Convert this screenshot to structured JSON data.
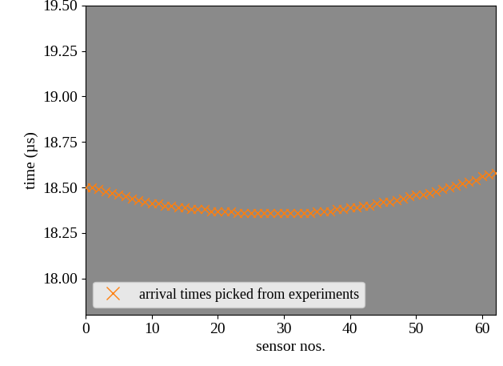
{
  "chart_data": {
    "type": "scatter",
    "xlabel": "sensor nos.",
    "ylabel": "time (µs)",
    "series": [
      {
        "name": "arrival times picked from experiments",
        "color": "#ff7f0e",
        "marker": "x",
        "x": [
          0,
          1,
          2,
          3,
          4,
          5,
          6,
          7,
          8,
          9,
          10,
          11,
          12,
          13,
          14,
          15,
          16,
          17,
          18,
          19,
          20,
          21,
          22,
          23,
          24,
          25,
          26,
          27,
          28,
          29,
          30,
          31,
          32,
          33,
          34,
          35,
          36,
          37,
          38,
          39,
          40,
          41,
          42,
          43,
          44,
          45,
          46,
          47,
          48,
          49,
          50,
          51,
          52,
          53,
          54,
          55,
          56,
          57,
          58,
          59,
          60,
          61,
          62
        ],
        "values": [
          18.5,
          18.5,
          18.49,
          18.48,
          18.47,
          18.46,
          18.45,
          18.44,
          18.43,
          18.42,
          18.41,
          18.41,
          18.4,
          18.4,
          18.39,
          18.39,
          18.38,
          18.38,
          18.38,
          18.37,
          18.37,
          18.37,
          18.37,
          18.36,
          18.36,
          18.36,
          18.36,
          18.36,
          18.36,
          18.36,
          18.36,
          18.36,
          18.36,
          18.36,
          18.36,
          18.37,
          18.37,
          18.37,
          18.38,
          18.38,
          18.39,
          18.39,
          18.4,
          18.4,
          18.41,
          18.42,
          18.42,
          18.43,
          18.44,
          18.45,
          18.46,
          18.46,
          18.47,
          18.48,
          18.49,
          18.5,
          18.51,
          18.52,
          18.53,
          18.54,
          18.56,
          18.57,
          18.58
        ]
      }
    ],
    "xlim": [
      0,
      62
    ],
    "xticks": [
      0,
      10,
      20,
      30,
      40,
      50,
      60
    ],
    "ylim": [
      17.8,
      19.5
    ],
    "yticks": [
      {
        "value": 18.0,
        "label": "18.00"
      },
      {
        "value": 18.25,
        "label": "18.25"
      },
      {
        "value": 18.5,
        "label": "18.50"
      },
      {
        "value": 18.75,
        "label": "18.75"
      },
      {
        "value": 19.0,
        "label": "19.00"
      },
      {
        "value": 19.25,
        "label": "19.25"
      },
      {
        "value": 19.5,
        "label": "19.50"
      }
    ],
    "legend": "lower left",
    "grid": false
  }
}
